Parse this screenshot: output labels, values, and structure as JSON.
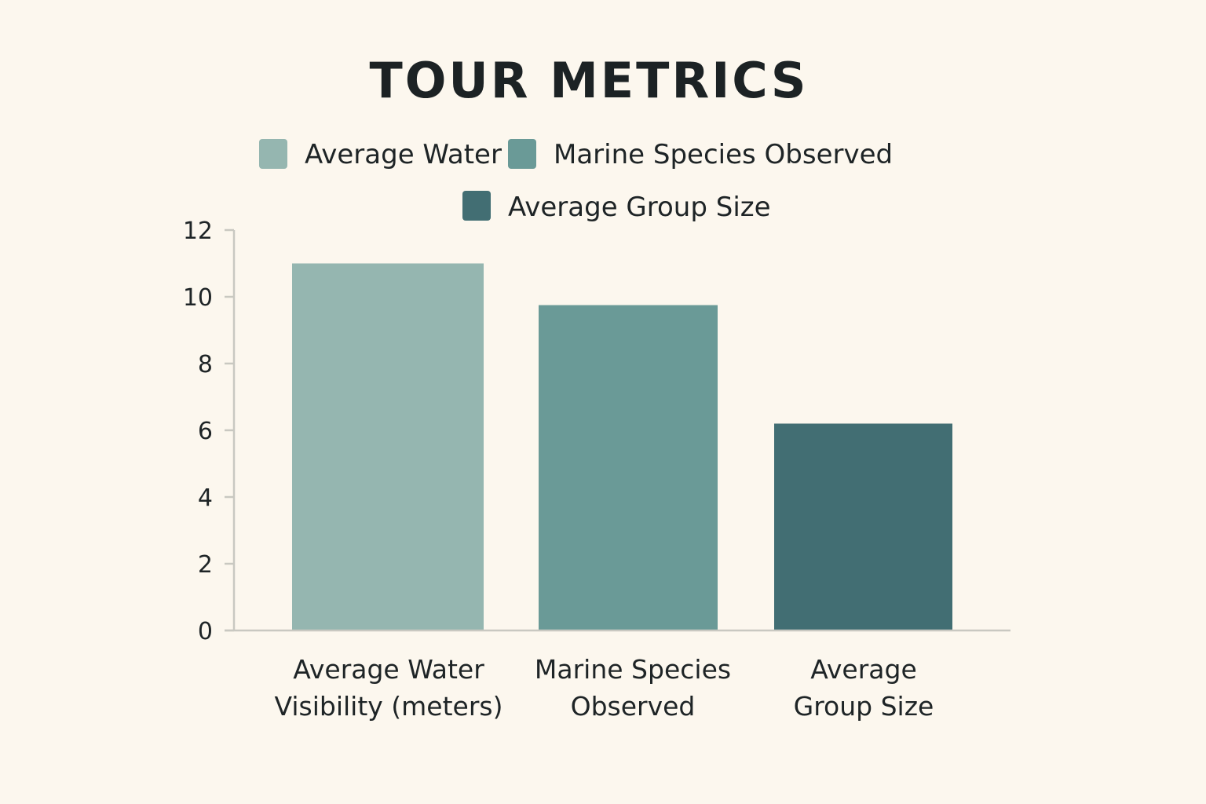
{
  "chart_data": {
    "type": "bar",
    "title": "TOUR METRICS",
    "categories": [
      [
        "Average Water",
        "Visibility (meters)"
      ],
      [
        "Marine Species",
        "Observed"
      ],
      [
        "Average",
        "Group Size"
      ]
    ],
    "values": [
      11,
      9.75,
      6.2
    ],
    "colors": [
      "#95b6b0",
      "#6a9a97",
      "#426e73"
    ],
    "legend": {
      "position": "top",
      "entries": [
        "Average Water",
        "Marine Species Observed",
        "Average Group Size"
      ]
    },
    "ylim": [
      0,
      12
    ],
    "yticks": [
      "0",
      "2",
      "4",
      "6",
      "8",
      "10",
      "12"
    ],
    "xlabel": "",
    "ylabel": "",
    "grid": false
  }
}
